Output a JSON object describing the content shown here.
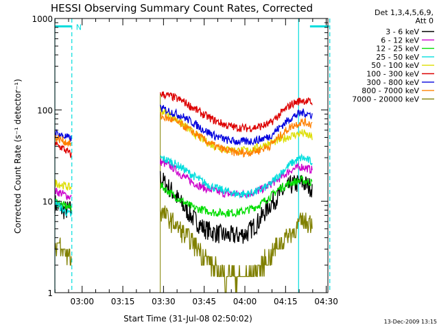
{
  "chart_data": {
    "type": "line",
    "title": "HESSI Observing Summary Count Rates, Corrected",
    "xlabel": "Start Time (31-Jul-08 02:50:02)",
    "ylabel": "Corrected Count Rate (s⁻¹ detector⁻¹)",
    "yscale": "log",
    "ylim": [
      1,
      1000
    ],
    "xlim_min": [
      -0.05,
      100
    ],
    "x_unit": "minutes after 02:50:02",
    "x_ticks": [
      {
        "label": "03:00",
        "value": 10
      },
      {
        "label": "03:15",
        "value": 25
      },
      {
        "label": "03:30",
        "value": 40
      },
      {
        "label": "03:45",
        "value": 55
      },
      {
        "label": "04:00",
        "value": 70
      },
      {
        "label": "04:15",
        "value": 85
      },
      {
        "label": "04:30",
        "value": 100
      }
    ],
    "y_ticks": [
      {
        "label": "1",
        "value": 1
      },
      {
        "label": "10",
        "value": 10
      },
      {
        "label": "100",
        "value": 100
      },
      {
        "label": "1000",
        "value": 1000
      }
    ],
    "legend": {
      "header": [
        "Det 1,3,4,5,6,9,",
        "Att 0"
      ],
      "placement": "right, outside plot"
    },
    "series": [
      {
        "name": "3 - 6 keV",
        "color": "#000000",
        "seg1": [
          9.5,
          8,
          8
        ],
        "seg2": [
          18,
          13,
          9,
          6.5,
          5,
          4.5,
          4.2,
          4.2,
          4.5,
          6,
          9,
          12,
          15,
          16,
          14
        ]
      },
      {
        "name": "6 - 12 keV",
        "color": "#cc00cc",
        "seg1": [
          13,
          12,
          11
        ],
        "seg2": [
          27,
          24,
          19,
          16,
          14,
          13,
          12,
          12,
          12,
          13,
          15,
          18,
          22,
          24,
          22
        ]
      },
      {
        "name": "12 - 25 keV",
        "color": "#00dd00",
        "seg1": [
          10,
          9,
          8.5
        ],
        "seg2": [
          15,
          12,
          10,
          8.5,
          8,
          7.5,
          7.5,
          7.5,
          8,
          9,
          11,
          14,
          16,
          17,
          16
        ]
      },
      {
        "name": "25 - 50 keV",
        "color": "#00dddd",
        "seg1": [
          10,
          8,
          7
        ],
        "seg2": [
          30,
          27,
          23,
          19,
          16,
          14,
          13,
          12,
          12,
          13,
          15,
          20,
          26,
          30,
          27
        ]
      },
      {
        "name": "50 - 100 keV",
        "color": "#dddd00",
        "seg1": [
          16,
          15,
          14
        ],
        "seg2": [
          100,
          85,
          70,
          56,
          46,
          40,
          37,
          36,
          36,
          39,
          43,
          47,
          52,
          56,
          50
        ]
      },
      {
        "name": "100 - 300 keV",
        "color": "#dd0000",
        "seg1": [
          42,
          38,
          32
        ],
        "seg2": [
          150,
          140,
          125,
          105,
          88,
          76,
          68,
          64,
          63,
          65,
          70,
          90,
          115,
          128,
          120
        ]
      },
      {
        "name": "300 - 800 keV",
        "color": "#0000dd",
        "seg1": [
          56,
          52,
          48
        ],
        "seg2": [
          105,
          95,
          85,
          72,
          60,
          52,
          47,
          45,
          45,
          47,
          51,
          65,
          82,
          94,
          88
        ]
      },
      {
        "name": "800 - 7000 keV",
        "color": "#ff8000",
        "seg1": [
          50,
          46,
          42
        ],
        "seg2": [
          85,
          78,
          68,
          57,
          47,
          40,
          36,
          34,
          34,
          36,
          40,
          52,
          66,
          74,
          70
        ]
      },
      {
        "name": "7000 - 20000 keV",
        "color": "#808000",
        "seg1": [
          3.5,
          2.8,
          2.5
        ],
        "seg2": [
          8,
          6,
          4.5,
          3.5,
          2.5,
          1.8,
          1.5,
          1.5,
          1.5,
          1.8,
          2.5,
          3.5,
          4.5,
          6,
          6
        ]
      }
    ],
    "seg1_x": [
      -0.05,
      3,
      6
    ],
    "seg2_x": [
      38.8,
      43,
      47,
      51,
      55,
      59,
      63,
      67,
      71,
      75,
      79,
      83,
      87,
      91,
      94.8
    ],
    "eclipse_bars": [
      {
        "from": -0.05,
        "to": 6,
        "value": 820
      },
      {
        "from": 94,
        "to": 101,
        "value": 820
      }
    ],
    "saa_marker": {
      "label": "N",
      "x": 6.2,
      "value": 820
    },
    "night_boundaries_x": [
      -0.05,
      6.2,
      89.8,
      101.3
    ],
    "data_start_x": 38.8,
    "colors": {
      "axis": "#000000",
      "night": "#00dddd"
    }
  },
  "footer": {
    "timestamp": "13-Dec-2009 13:15"
  }
}
